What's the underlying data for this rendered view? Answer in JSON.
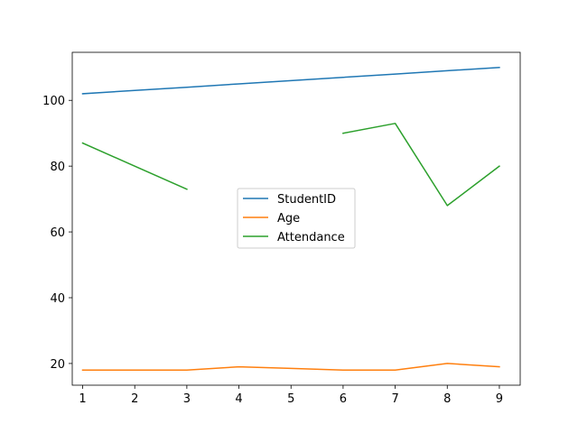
{
  "chart_data": {
    "type": "line",
    "x": [
      1,
      2,
      3,
      4,
      5,
      6,
      7,
      8,
      9
    ],
    "series": [
      {
        "name": "StudentID",
        "color": "#1f77b4",
        "values": [
          102,
          103,
          104,
          105,
          106,
          107,
          108,
          109,
          110
        ]
      },
      {
        "name": "Age",
        "color": "#ff7f0e",
        "values": [
          18,
          18,
          18,
          19,
          18.5,
          18,
          18,
          20,
          19
        ]
      },
      {
        "name": "Attendance",
        "color": "#2ca02c",
        "values": [
          87,
          80,
          73,
          null,
          null,
          90,
          93,
          68,
          80
        ]
      }
    ],
    "xlim": [
      0.8,
      9.4
    ],
    "ylim": [
      13.4,
      114.6
    ],
    "xticks": [
      1,
      2,
      3,
      4,
      5,
      6,
      7,
      8,
      9
    ],
    "yticks": [
      20,
      40,
      60,
      80,
      100
    ],
    "grid": false,
    "legend_position": "center"
  }
}
